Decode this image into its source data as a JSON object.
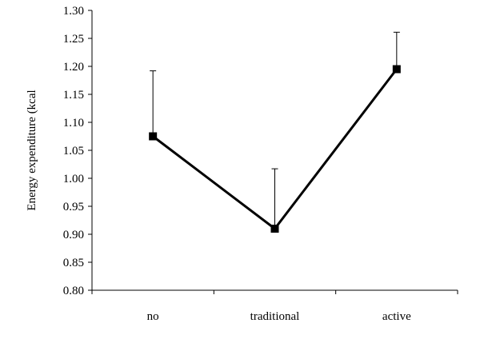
{
  "chart_data": {
    "type": "line",
    "title": "",
    "xlabel": "",
    "ylabel": "Energy expenditure (kcal",
    "categories": [
      "no",
      "traditional",
      "active"
    ],
    "series": [
      {
        "values": [
          1.075,
          0.91,
          1.195
        ],
        "error_upper": [
          1.192,
          1.017,
          1.261
        ]
      }
    ],
    "ylim": [
      0.8,
      1.3
    ],
    "yticks": [
      "0.80",
      "0.85",
      "0.90",
      "0.95",
      "1.00",
      "1.05",
      "1.10",
      "1.15",
      "1.20",
      "1.25",
      "1.30"
    ],
    "grid": false,
    "legend": "none",
    "line_color": "#000000",
    "marker": "square"
  }
}
